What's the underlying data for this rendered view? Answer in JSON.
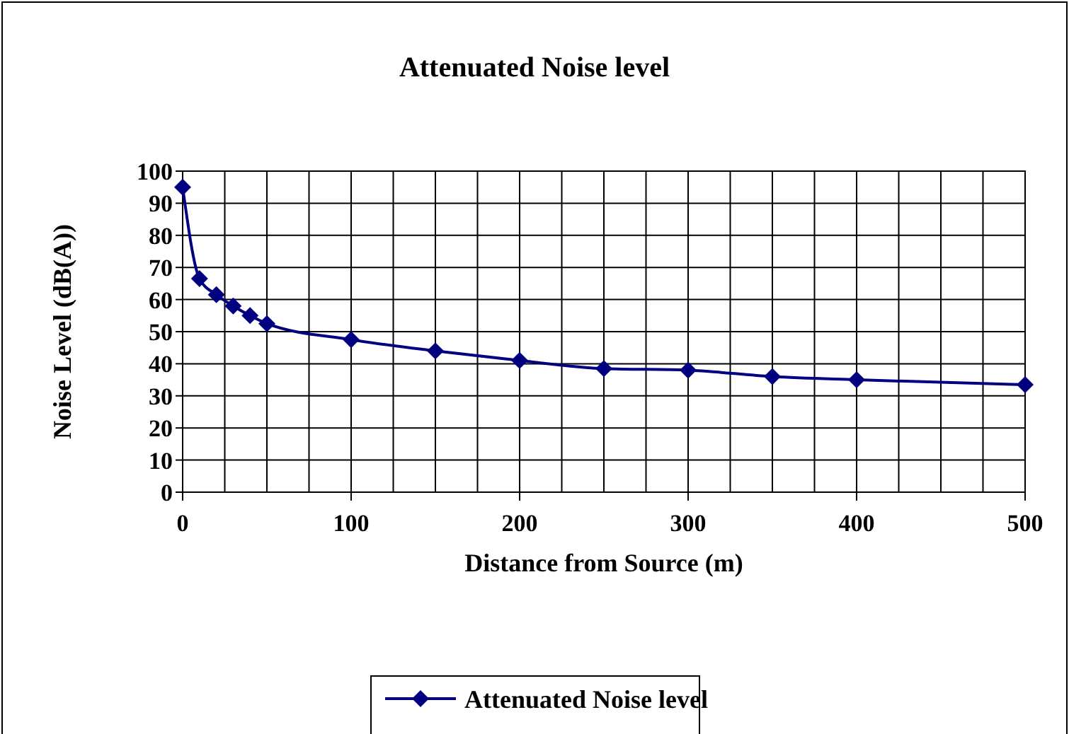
{
  "chart_data": {
    "type": "line",
    "title": "Attenuated Noise level",
    "xlabel": "Distance from Source (m)",
    "ylabel": "Noise Level (dB(A))",
    "x": [
      0,
      10,
      20,
      30,
      40,
      50,
      100,
      150,
      200,
      250,
      300,
      350,
      400,
      500
    ],
    "series": [
      {
        "name": "Attenuated Noise level",
        "color": "#000080",
        "values": [
          95,
          66.5,
          61.5,
          58,
          55,
          52.5,
          47.5,
          44,
          41,
          38.5,
          38,
          36,
          35,
          33.5
        ]
      }
    ],
    "xlim": [
      0,
      500
    ],
    "xticks": [
      0,
      {
        "value": 25,
        "label": null
      },
      {
        "value": 50,
        "label": null
      },
      {
        "value": 75,
        "label": null
      },
      100,
      {
        "value": 125,
        "label": null
      },
      {
        "value": 150,
        "label": null
      },
      {
        "value": 175,
        "label": null
      },
      200,
      {
        "value": 225,
        "label": null
      },
      {
        "value": 250,
        "label": null
      },
      {
        "value": 275,
        "label": null
      },
      300,
      {
        "value": 325,
        "label": null
      },
      {
        "value": 350,
        "label": null
      },
      {
        "value": 375,
        "label": null
      },
      400,
      {
        "value": 425,
        "label": null
      },
      {
        "value": 450,
        "label": null
      },
      {
        "value": 475,
        "label": null
      },
      500
    ],
    "ylim": [
      0,
      100
    ],
    "yticks": [
      0,
      10,
      20,
      30,
      40,
      50,
      60,
      70,
      80,
      90,
      100
    ],
    "grid": true,
    "legend": "bottom",
    "marker": "diamond",
    "line_style": "solid"
  }
}
